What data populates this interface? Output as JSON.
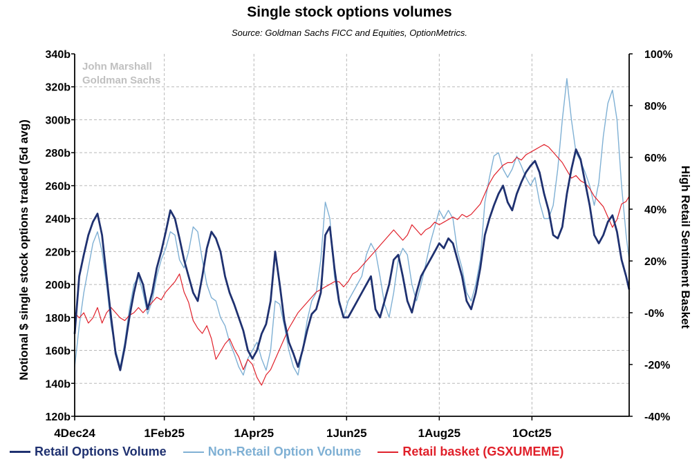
{
  "colors": {
    "retail": "#1f3170",
    "non_retail": "#7fb0d4",
    "basket": "#e0202a",
    "grid": "#b8b8b8",
    "watermark": "#c0c0c0"
  },
  "watermark": [
    "John Marshall",
    "Goldman Sachs"
  ],
  "chart_data": {
    "type": "line",
    "title": "Single stock options volumes",
    "subtitle": "Source: Goldman Sachs FICC and Equities, OptionMetrics.",
    "ylabel": "Notional $ single stock options traded (5d avg)",
    "y2label": "High Retail Sentiment Basket",
    "ylim": [
      120,
      340
    ],
    "y2lim": [
      -40,
      100
    ],
    "yticks": [
      120,
      140,
      160,
      180,
      200,
      220,
      240,
      260,
      280,
      300,
      320,
      340
    ],
    "ytick_labels": [
      "120b",
      "140b",
      "160b",
      "180b",
      "200b",
      "220b",
      "240b",
      "260b",
      "280b",
      "300b",
      "320b",
      "340b"
    ],
    "y2ticks": [
      -40,
      -20,
      0,
      20,
      40,
      60,
      80,
      100
    ],
    "y2tick_labels": [
      "-40%",
      "-20%",
      "-0%",
      "20%",
      "40%",
      "60%",
      "80%",
      "100%"
    ],
    "x_range_days": [
      0,
      365
    ],
    "xticks": [
      0,
      59,
      118,
      179,
      240,
      301
    ],
    "xtick_labels": [
      "4Dec24",
      "1Feb25",
      "1Apr25",
      "1Jun25",
      "1Aug25",
      "1Oct25"
    ],
    "legend_position": "bottom",
    "series": [
      {
        "name": "Retail Options Volume",
        "axis": "left",
        "x": [
          0,
          3,
          6,
          9,
          12,
          15,
          18,
          21,
          24,
          27,
          30,
          33,
          36,
          39,
          42,
          45,
          48,
          51,
          54,
          57,
          60,
          63,
          66,
          69,
          72,
          75,
          78,
          81,
          84,
          87,
          90,
          93,
          96,
          99,
          102,
          105,
          108,
          111,
          114,
          117,
          120,
          123,
          126,
          129,
          132,
          135,
          138,
          141,
          144,
          147,
          150,
          153,
          156,
          159,
          162,
          165,
          168,
          171,
          174,
          177,
          180,
          183,
          186,
          189,
          192,
          195,
          198,
          201,
          204,
          207,
          210,
          213,
          216,
          219,
          222,
          225,
          228,
          231,
          234,
          237,
          240,
          243,
          246,
          249,
          252,
          255,
          258,
          261,
          264,
          267,
          270,
          273,
          276,
          279,
          282,
          285,
          288,
          291,
          294,
          297,
          300,
          303,
          306,
          309,
          312,
          315,
          318,
          321,
          324,
          327,
          330,
          333,
          336,
          339,
          342,
          345,
          348,
          351,
          354,
          357,
          360,
          363,
          365
        ],
        "y": [
          170,
          205,
          218,
          230,
          238,
          243,
          230,
          205,
          180,
          158,
          148,
          162,
          180,
          195,
          207,
          200,
          185,
          195,
          210,
          220,
          232,
          245,
          240,
          228,
          215,
          205,
          195,
          190,
          205,
          222,
          232,
          228,
          220,
          205,
          195,
          188,
          180,
          172,
          160,
          155,
          160,
          170,
          176,
          190,
          220,
          200,
          178,
          165,
          158,
          150,
          160,
          172,
          182,
          185,
          195,
          230,
          235,
          210,
          190,
          180,
          180,
          185,
          190,
          195,
          200,
          205,
          185,
          180,
          190,
          200,
          215,
          218,
          205,
          190,
          183,
          195,
          205,
          210,
          215,
          220,
          225,
          222,
          228,
          225,
          215,
          205,
          190,
          185,
          195,
          210,
          230,
          240,
          248,
          255,
          260,
          250,
          245,
          255,
          262,
          268,
          272,
          275,
          268,
          255,
          245,
          230,
          228,
          235,
          255,
          270,
          282,
          276,
          262,
          248,
          230,
          225,
          230,
          238,
          242,
          232,
          215,
          205,
          197
        ]
      },
      {
        "name": "Non-Retail Option Volume",
        "axis": "left",
        "x": [
          0,
          3,
          6,
          9,
          12,
          15,
          18,
          21,
          24,
          27,
          30,
          33,
          36,
          39,
          42,
          45,
          48,
          51,
          54,
          57,
          60,
          63,
          66,
          69,
          72,
          75,
          78,
          81,
          84,
          87,
          90,
          93,
          96,
          99,
          102,
          105,
          108,
          111,
          114,
          117,
          120,
          123,
          126,
          129,
          132,
          135,
          138,
          141,
          144,
          147,
          150,
          153,
          156,
          159,
          162,
          165,
          168,
          171,
          174,
          177,
          180,
          183,
          186,
          189,
          192,
          195,
          198,
          201,
          204,
          207,
          210,
          213,
          216,
          219,
          222,
          225,
          228,
          231,
          234,
          237,
          240,
          243,
          246,
          249,
          252,
          255,
          258,
          261,
          264,
          267,
          270,
          273,
          276,
          279,
          282,
          285,
          288,
          291,
          294,
          297,
          300,
          303,
          306,
          309,
          312,
          315,
          318,
          321,
          324,
          327,
          330,
          333,
          336,
          339,
          342,
          345,
          348,
          351,
          354,
          357,
          360,
          363,
          365
        ],
        "y": [
          150,
          175,
          195,
          210,
          225,
          232,
          220,
          200,
          175,
          160,
          150,
          165,
          185,
          200,
          205,
          195,
          182,
          190,
          205,
          215,
          222,
          232,
          230,
          215,
          210,
          220,
          235,
          232,
          215,
          200,
          192,
          190,
          180,
          175,
          165,
          158,
          150,
          145,
          155,
          160,
          165,
          155,
          148,
          160,
          190,
          188,
          175,
          160,
          150,
          145,
          160,
          178,
          190,
          195,
          215,
          250,
          240,
          205,
          188,
          180,
          190,
          195,
          200,
          205,
          218,
          225,
          220,
          205,
          188,
          180,
          195,
          215,
          222,
          218,
          200,
          190,
          200,
          212,
          225,
          235,
          245,
          240,
          245,
          240,
          220,
          210,
          195,
          190,
          200,
          215,
          250,
          265,
          278,
          280,
          270,
          265,
          270,
          278,
          272,
          265,
          260,
          265,
          250,
          240,
          240,
          248,
          270,
          300,
          325,
          300,
          280,
          275,
          268,
          260,
          248,
          262,
          290,
          310,
          318,
          300,
          260,
          230,
          215
        ]
      },
      {
        "name": "Retail basket (GSXUMEME)",
        "axis": "right",
        "x": [
          0,
          3,
          6,
          9,
          12,
          15,
          18,
          21,
          24,
          27,
          30,
          33,
          36,
          39,
          42,
          45,
          48,
          51,
          54,
          57,
          60,
          63,
          66,
          69,
          72,
          75,
          78,
          81,
          84,
          87,
          90,
          93,
          96,
          99,
          102,
          105,
          108,
          111,
          114,
          117,
          120,
          123,
          126,
          129,
          132,
          135,
          138,
          141,
          144,
          147,
          150,
          153,
          156,
          159,
          162,
          165,
          168,
          171,
          174,
          177,
          180,
          183,
          186,
          189,
          192,
          195,
          198,
          201,
          204,
          207,
          210,
          213,
          216,
          219,
          222,
          225,
          228,
          231,
          234,
          237,
          240,
          243,
          246,
          249,
          252,
          255,
          258,
          261,
          264,
          267,
          270,
          273,
          276,
          279,
          282,
          285,
          288,
          291,
          294,
          297,
          300,
          303,
          306,
          309,
          312,
          315,
          318,
          321,
          324,
          327,
          330,
          333,
          336,
          339,
          342,
          345,
          348,
          351,
          354,
          357,
          360,
          363,
          365
        ],
        "y": [
          0,
          -2,
          0,
          -4,
          -2,
          2,
          -4,
          0,
          2,
          0,
          -2,
          -3,
          -1,
          0,
          2,
          0,
          2,
          4,
          6,
          5,
          8,
          10,
          12,
          15,
          8,
          4,
          -3,
          -6,
          -8,
          -5,
          -10,
          -18,
          -15,
          -12,
          -10,
          -14,
          -17,
          -22,
          -18,
          -20,
          -25,
          -28,
          -24,
          -22,
          -18,
          -14,
          -10,
          -6,
          -3,
          0,
          2,
          4,
          6,
          8,
          9,
          10,
          11,
          12,
          12,
          10,
          12,
          15,
          16,
          18,
          20,
          22,
          24,
          26,
          28,
          30,
          32,
          30,
          28,
          30,
          34,
          32,
          30,
          32,
          33,
          35,
          34,
          35,
          36,
          37,
          36,
          38,
          37,
          38,
          40,
          42,
          46,
          50,
          53,
          55,
          57,
          58,
          58,
          60,
          59,
          61,
          62,
          63,
          64,
          65,
          64,
          62,
          60,
          58,
          55,
          52,
          53,
          51,
          50,
          48,
          45,
          43,
          41,
          37,
          33,
          36,
          42,
          43,
          45
        ]
      }
    ]
  }
}
